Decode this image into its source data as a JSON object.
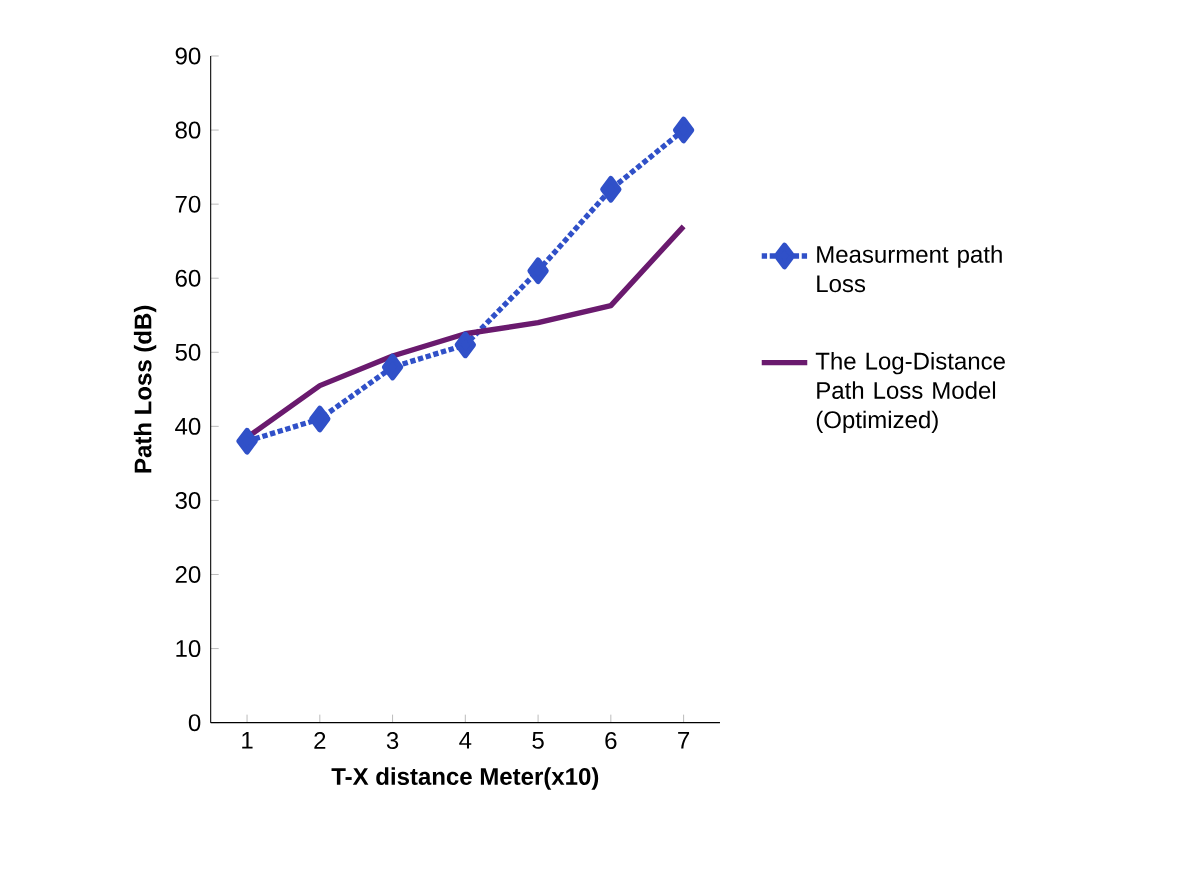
{
  "chart_data": {
    "type": "line",
    "xlabel": "T-X distance Meter(x10)",
    "ylabel": "Path Loss (dB)",
    "categories": [
      "1",
      "2",
      "3",
      "4",
      "5",
      "6",
      "7"
    ],
    "ylim": [
      0,
      90
    ],
    "yticks": [
      0,
      10,
      20,
      30,
      40,
      50,
      60,
      70,
      80,
      90
    ],
    "grid": false,
    "legend": "right",
    "series": [
      {
        "name": "Measurment path Loss",
        "color": "#3050c8",
        "values": [
          38,
          41,
          48,
          51,
          61,
          72,
          80
        ],
        "marker": "diamond",
        "line_style": "dotted"
      },
      {
        "name": "The Log-Distance Path Loss Model (Optimized)",
        "color": "#6a1a6e",
        "values": [
          38.5,
          45.5,
          49.5,
          52.5,
          54,
          56.3,
          67
        ],
        "marker": "none",
        "line_style": "solid"
      }
    ]
  }
}
